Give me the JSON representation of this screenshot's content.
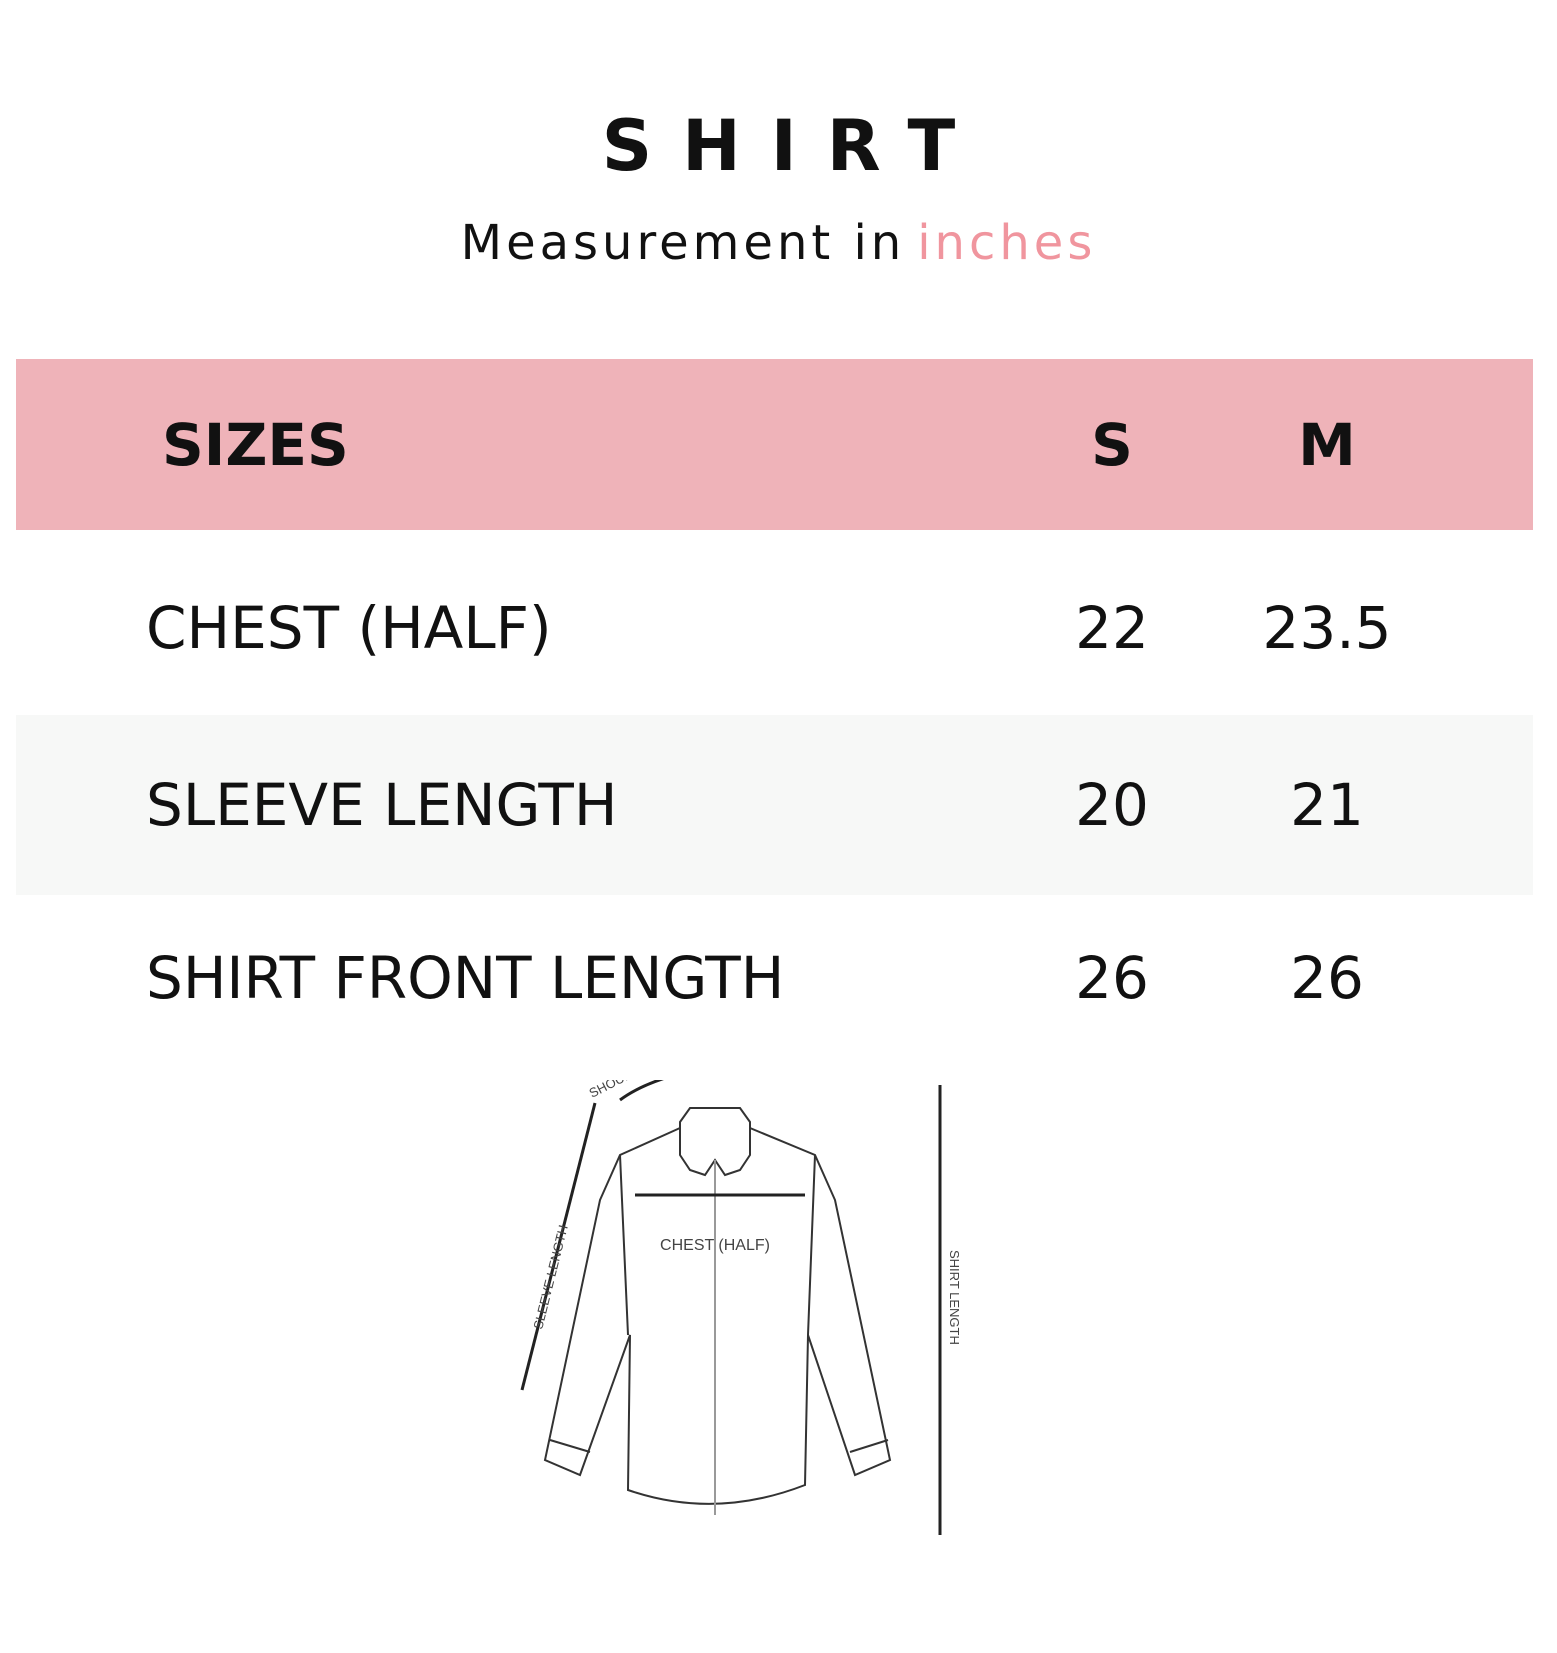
{
  "title": "SHIRT",
  "subtitle": {
    "prefix": "Measurement in",
    "unit": "inches"
  },
  "colors": {
    "header_bg": "#efb3b9",
    "unit_text": "#f0959e",
    "alt_row_bg": "#f7f8f7"
  },
  "table": {
    "headers": [
      "SIZES",
      "S",
      "M"
    ],
    "rows": [
      {
        "label": "CHEST (HALF)",
        "s": "22",
        "m": "23.5"
      },
      {
        "label": "SLEEVE LENGTH",
        "s": "20",
        "m": "21"
      },
      {
        "label": "SHIRT FRONT LENGTH",
        "s": "26",
        "m": "26"
      }
    ]
  },
  "diagram": {
    "shoulder": "SHOULDER",
    "sleeve": "SLEEVE LENGTH",
    "chest": "CHEST (HALF)",
    "length": "SHIRT LENGTH"
  }
}
